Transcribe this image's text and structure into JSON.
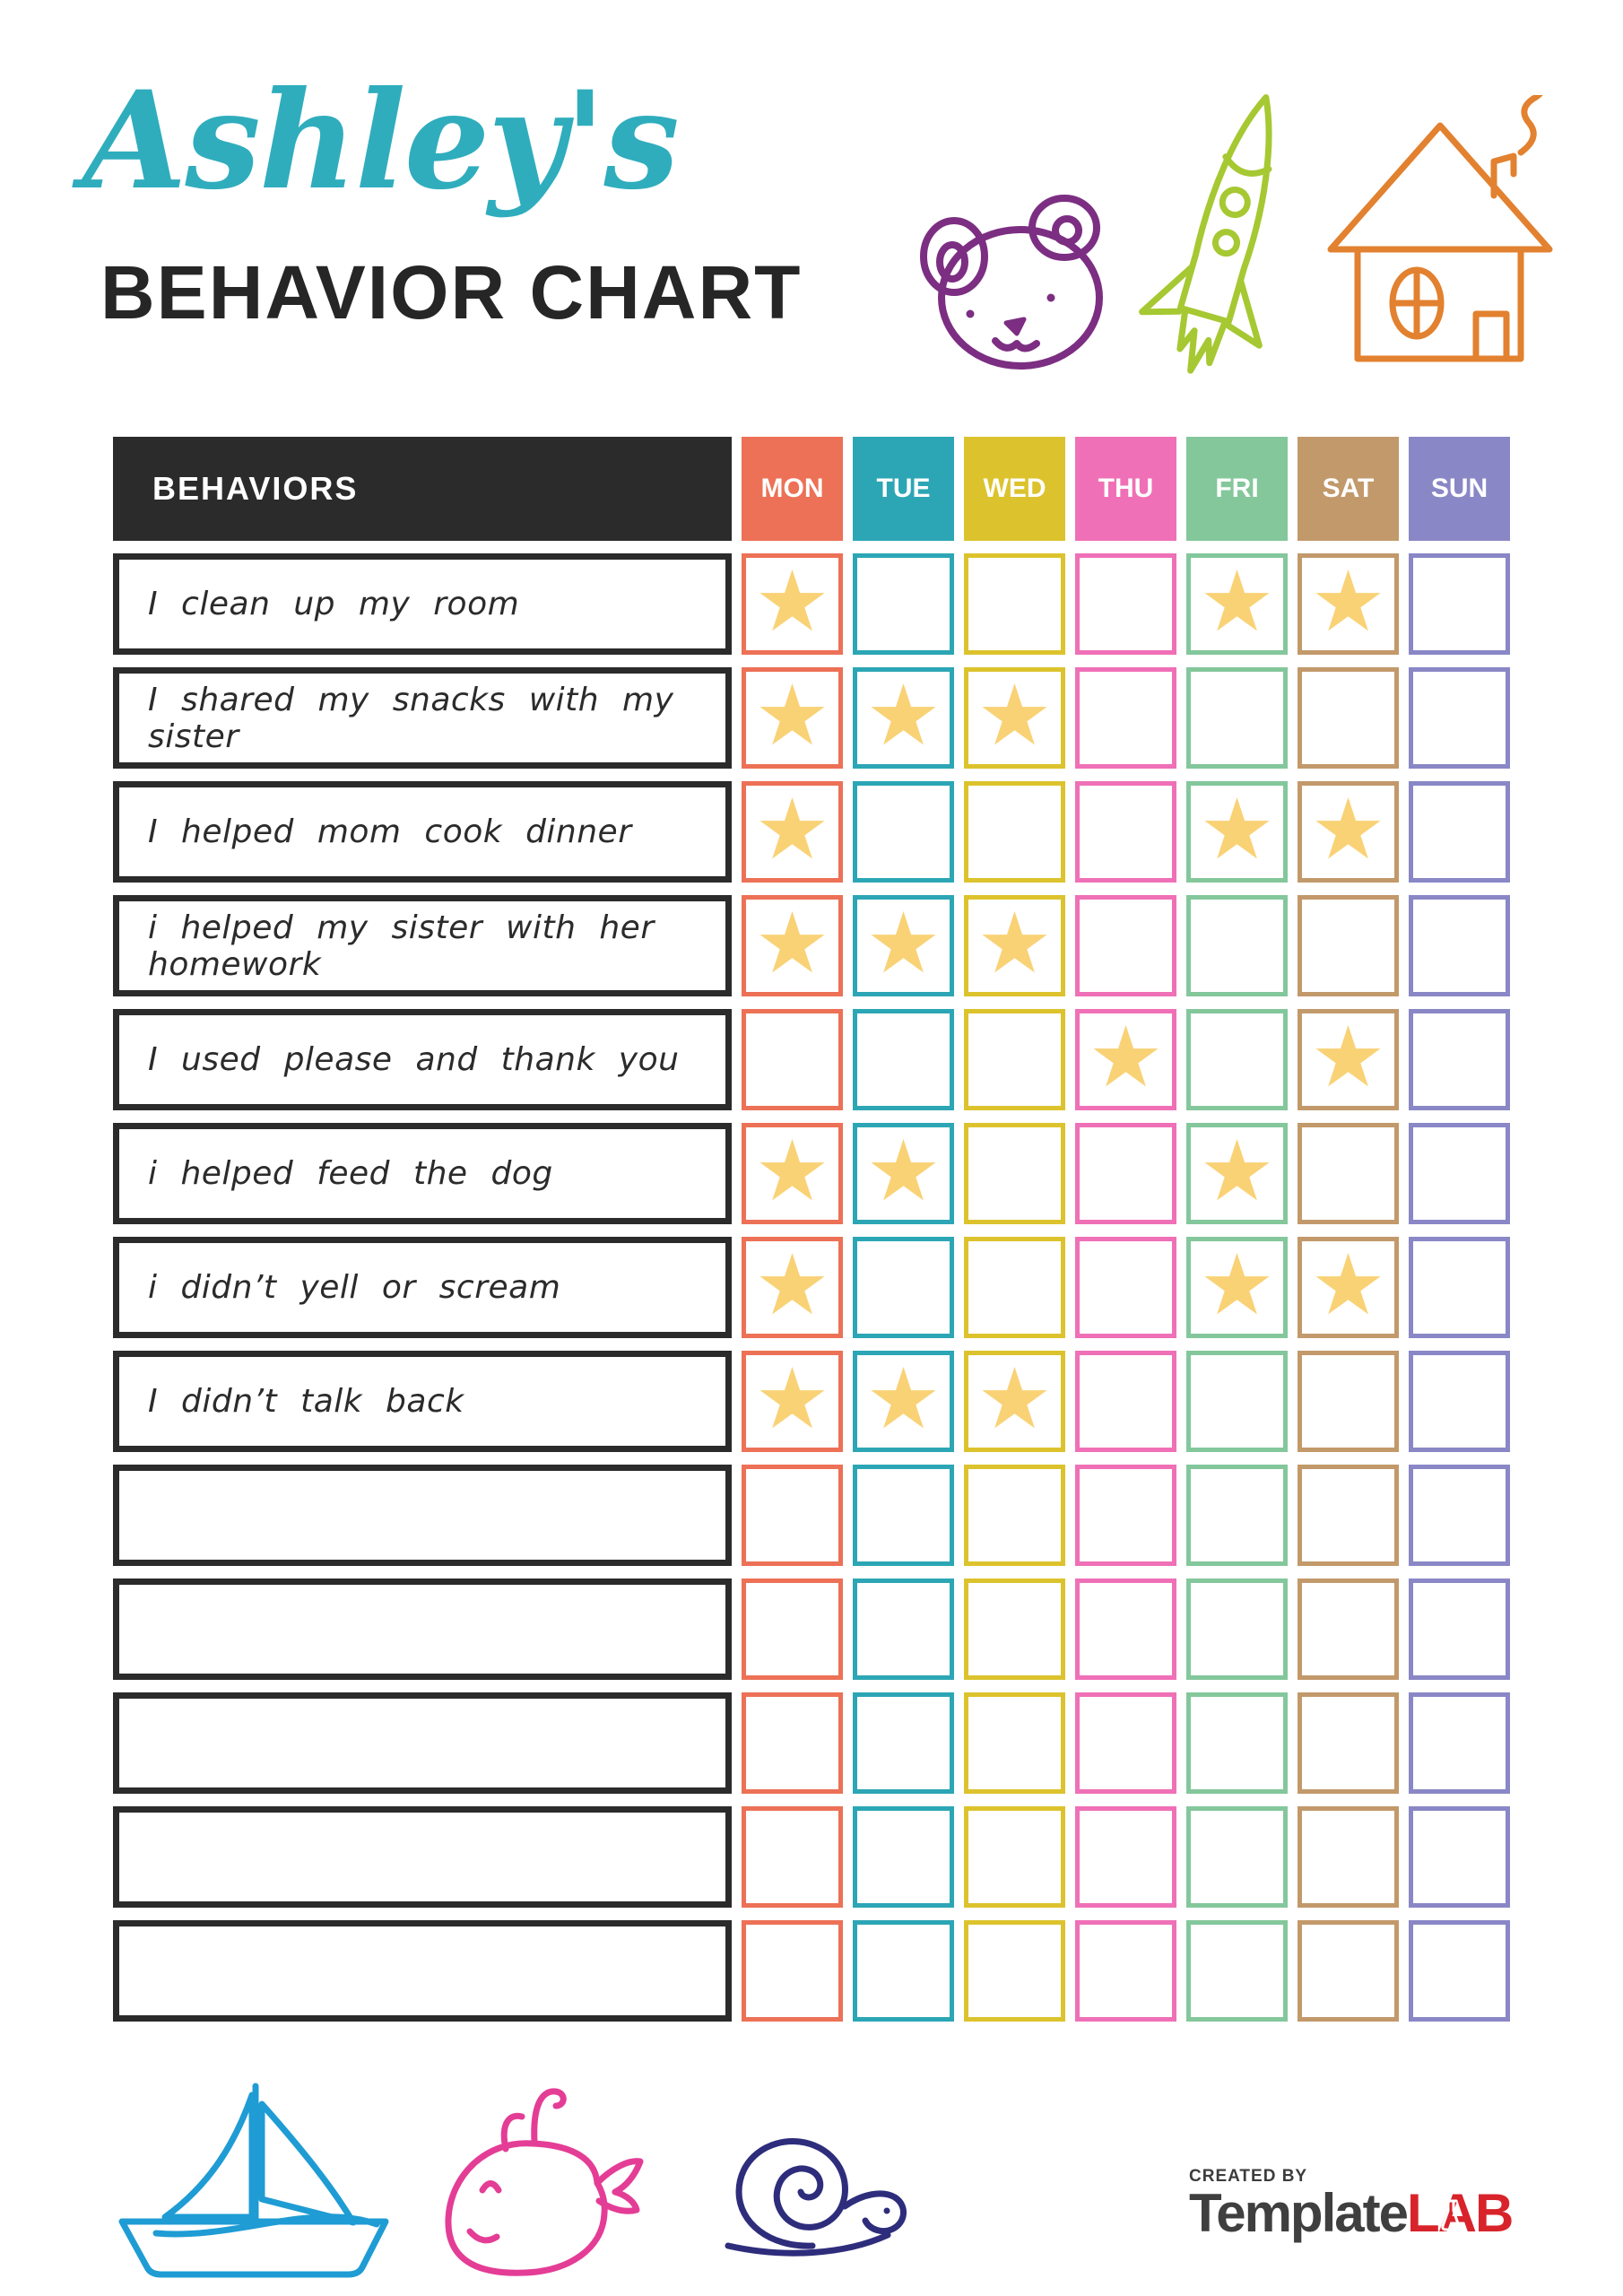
{
  "header": {
    "name_script": "Ashley's",
    "title": "BEHAVIOR CHART"
  },
  "table": {
    "behaviors_header": "BEHAVIORS",
    "days": [
      {
        "label": "MON",
        "color": "#ec7156"
      },
      {
        "label": "TUE",
        "color": "#2ca6b5"
      },
      {
        "label": "WED",
        "color": "#dcc32d"
      },
      {
        "label": "THU",
        "color": "#ef70b6"
      },
      {
        "label": "FRI",
        "color": "#83c79b"
      },
      {
        "label": "SAT",
        "color": "#c2996b"
      },
      {
        "label": "SUN",
        "color": "#8a87c6"
      }
    ],
    "rows": [
      {
        "label": "I clean up my room",
        "stars": [
          "MON",
          "FRI",
          "SAT"
        ]
      },
      {
        "label": "I shared my snacks with my sister",
        "stars": [
          "MON",
          "TUE",
          "WED"
        ]
      },
      {
        "label": "I helped mom cook dinner",
        "stars": [
          "MON",
          "FRI",
          "SAT"
        ]
      },
      {
        "label": "i helped my sister with her homework",
        "stars": [
          "MON",
          "TUE",
          "WED"
        ]
      },
      {
        "label": "I used please and thank you",
        "stars": [
          "THU",
          "SAT"
        ]
      },
      {
        "label": "i helped feed the dog",
        "stars": [
          "MON",
          "TUE",
          "FRI"
        ]
      },
      {
        "label": "i didn’t yell or scream",
        "stars": [
          "MON",
          "FRI",
          "SAT"
        ]
      },
      {
        "label": "I didn’t talk back",
        "stars": [
          "MON",
          "TUE",
          "WED"
        ]
      },
      {
        "label": "",
        "stars": []
      },
      {
        "label": "",
        "stars": []
      },
      {
        "label": "",
        "stars": []
      },
      {
        "label": "",
        "stars": []
      },
      {
        "label": "",
        "stars": []
      }
    ],
    "header_bg": "#2b2b2b",
    "star_color": "#f9d276",
    "star_glyph": "★"
  },
  "footer": {
    "created_by": "CREATED BY",
    "brand_name": "Template",
    "brand_suffix": "LAB"
  },
  "colors": {
    "title_script": "#2fadbd",
    "title_main": "#262626",
    "bear_doodle": "#7c2e82",
    "rocket_doodle": "#a6c832",
    "house_doodle": "#e2812f",
    "sailboat_doodle": "#1f9cd4",
    "whale_doodle": "#e43d96",
    "snail_doodle": "#2e2d7c",
    "brand_gray": "#3f3f3f",
    "brand_red": "#d8232a"
  }
}
